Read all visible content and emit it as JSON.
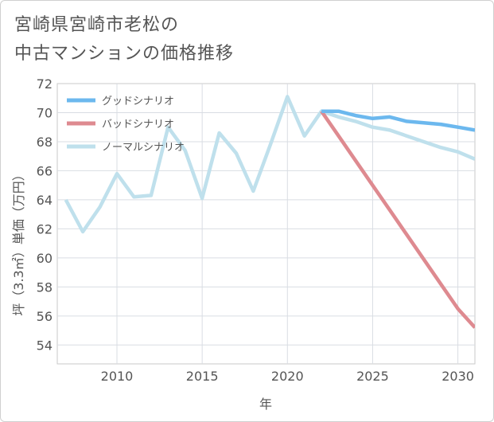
{
  "title_line1": "宮崎県宮崎市老松の",
  "title_line2": "中古マンションの価格推移",
  "chart_data": {
    "type": "line",
    "xlabel": "年",
    "ylabel": "坪（3.3㎡）単価（万円）",
    "xlim": [
      2006.5,
      2031
    ],
    "ylim": [
      52.7,
      72
    ],
    "x_ticks": [
      2010,
      2015,
      2020,
      2025,
      2030
    ],
    "y_ticks": [
      54,
      56,
      58,
      60,
      62,
      64,
      66,
      68,
      70,
      72
    ],
    "grid": true,
    "legend_position": "top-left",
    "series": [
      {
        "name": "グッドシナリオ",
        "color": "#6cb8ee",
        "x": [
          2022,
          2023,
          2024,
          2025,
          2026,
          2027,
          2028,
          2029,
          2030,
          2031
        ],
        "y": [
          70.1,
          70.1,
          69.8,
          69.6,
          69.7,
          69.4,
          69.3,
          69.2,
          69.0,
          68.8
        ]
      },
      {
        "name": "バッドシナリオ",
        "color": "#de8a90",
        "x": [
          2022,
          2023,
          2024,
          2025,
          2026,
          2027,
          2028,
          2029,
          2030,
          2031
        ],
        "y": [
          70.1,
          68.4,
          66.7,
          65.0,
          63.3,
          61.6,
          59.9,
          58.2,
          56.5,
          55.2
        ]
      },
      {
        "name": "ノーマルシナリオ",
        "color": "#bfe0ec",
        "x": [
          2007,
          2008,
          2009,
          2010,
          2011,
          2012,
          2013,
          2014,
          2015,
          2016,
          2017,
          2018,
          2019,
          2020,
          2021,
          2022,
          2023,
          2024,
          2025,
          2026,
          2027,
          2028,
          2029,
          2030,
          2031
        ],
        "y": [
          64.0,
          61.8,
          63.5,
          65.8,
          64.2,
          64.3,
          69.0,
          67.4,
          64.1,
          68.6,
          67.2,
          64.6,
          67.8,
          71.1,
          68.4,
          70.1,
          69.7,
          69.4,
          69.0,
          68.8,
          68.4,
          68.0,
          67.6,
          67.3,
          66.8
        ]
      }
    ]
  }
}
